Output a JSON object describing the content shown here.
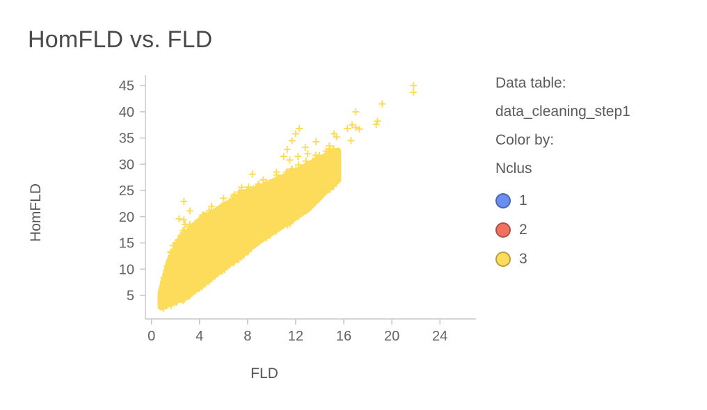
{
  "page": {
    "title": "HomFLD vs. FLD"
  },
  "legend": {
    "data_table_label": "Data table:",
    "data_table_value": "data_cleaning_step1",
    "color_by_label": "Color by:",
    "color_by_value": "Nclus",
    "entries": [
      {
        "label": "1",
        "color": "#6a8ef0"
      },
      {
        "label": "2",
        "color": "#f07162"
      },
      {
        "label": "3",
        "color": "#fddc5c"
      }
    ]
  },
  "chart_data": {
    "type": "scatter",
    "title": "HomFLD vs. FLD",
    "xlabel": "FLD",
    "ylabel": "HomFLD",
    "xlim": [
      -0.5,
      27
    ],
    "ylim": [
      0.5,
      47
    ],
    "xticks": [
      0,
      4,
      8,
      12,
      16,
      20,
      24
    ],
    "yticks": [
      5,
      10,
      15,
      20,
      25,
      30,
      35,
      40,
      45
    ],
    "marker": "plus",
    "grid": false,
    "legend_position": "right",
    "dense_band": {
      "upper_edge": [
        [
          0.8,
          5.5
        ],
        [
          1.5,
          11.5
        ],
        [
          2.5,
          16.0
        ],
        [
          4.0,
          19.0
        ],
        [
          6.0,
          22.0
        ],
        [
          8.0,
          24.5
        ],
        [
          10.0,
          26.5
        ],
        [
          12.0,
          28.5
        ],
        [
          14.0,
          31.0
        ],
        [
          15.5,
          32.5
        ]
      ],
      "lower_edge": [
        [
          0.8,
          2.8
        ],
        [
          3.0,
          5.0
        ],
        [
          5.0,
          8.5
        ],
        [
          7.0,
          12.0
        ],
        [
          9.0,
          15.5
        ],
        [
          11.0,
          18.5
        ],
        [
          13.0,
          21.5
        ],
        [
          14.5,
          25.0
        ],
        [
          15.5,
          27.0
        ]
      ]
    },
    "series": [
      {
        "name": "3",
        "color": "#fddc5c",
        "points": [
          {
            "x": 21.8,
            "y": 45.0
          },
          {
            "x": 21.8,
            "y": 43.7
          },
          {
            "x": 19.2,
            "y": 41.5
          },
          {
            "x": 17.0,
            "y": 40.0
          },
          {
            "x": 18.8,
            "y": 38.2
          },
          {
            "x": 18.7,
            "y": 37.6
          },
          {
            "x": 17.0,
            "y": 37.0
          },
          {
            "x": 17.3,
            "y": 36.7
          },
          {
            "x": 16.7,
            "y": 37.5
          },
          {
            "x": 16.3,
            "y": 36.8
          },
          {
            "x": 15.2,
            "y": 35.8
          },
          {
            "x": 15.4,
            "y": 35.2
          },
          {
            "x": 16.6,
            "y": 34.5
          },
          {
            "x": 12.3,
            "y": 36.8
          },
          {
            "x": 12.0,
            "y": 35.8
          },
          {
            "x": 11.7,
            "y": 34.5
          },
          {
            "x": 13.7,
            "y": 34.3
          },
          {
            "x": 12.8,
            "y": 33.2
          },
          {
            "x": 11.3,
            "y": 32.8
          },
          {
            "x": 11.0,
            "y": 31.5
          },
          {
            "x": 11.5,
            "y": 30.8
          },
          {
            "x": 8.4,
            "y": 28.1
          },
          {
            "x": 2.7,
            "y": 22.9
          },
          {
            "x": 3.2,
            "y": 21.1
          },
          {
            "x": 2.3,
            "y": 19.6
          },
          {
            "x": 2.7,
            "y": 19.4
          },
          {
            "x": 2.8,
            "y": 18.5
          },
          {
            "x": 1.8,
            "y": 14.5
          },
          {
            "x": 1.6,
            "y": 13.3
          },
          {
            "x": 2.2,
            "y": 15.5
          },
          {
            "x": 5.0,
            "y": 22.0
          },
          {
            "x": 6.0,
            "y": 23.5
          },
          {
            "x": 7.5,
            "y": 25.6
          },
          {
            "x": 9.3,
            "y": 27.0
          },
          {
            "x": 10.4,
            "y": 28.5
          },
          {
            "x": 12.2,
            "y": 31.5
          },
          {
            "x": 13.0,
            "y": 32.0
          },
          {
            "x": 14.8,
            "y": 33.5
          },
          {
            "x": 1.2,
            "y": 3.0
          },
          {
            "x": 1.0,
            "y": 2.5
          }
        ]
      }
    ]
  }
}
